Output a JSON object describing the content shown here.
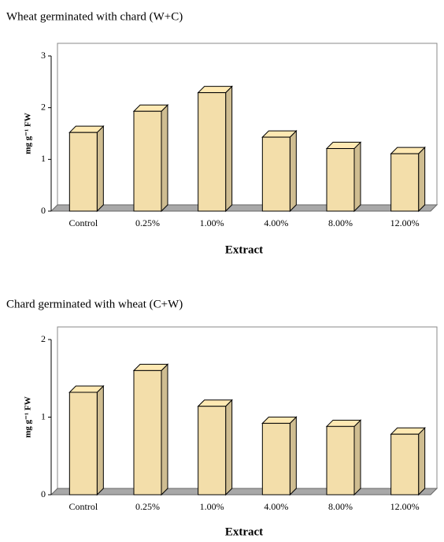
{
  "chart_data": [
    {
      "type": "bar3d",
      "title": "Wheat germinated with chard (W+C)",
      "ylabel": "mg g⁻¹ FW",
      "xlabel": "Extract",
      "categories": [
        "Control",
        "0.25%",
        "1.00%",
        "4.00%",
        "8.00%",
        "12.00%"
      ],
      "values": [
        1.52,
        1.93,
        2.29,
        1.43,
        1.21,
        1.11
      ],
      "color": "#f3deaa",
      "ylim": [
        0,
        3
      ],
      "yticks": [
        0,
        1,
        2,
        3
      ]
    },
    {
      "type": "bar3d",
      "title": "Chard germinated with wheat (C+W)",
      "ylabel": "mg g⁻¹ FW",
      "xlabel": "Extract",
      "categories": [
        "Control",
        "0.25%",
        "1.00%",
        "4.00%",
        "8.00%",
        "12.00%"
      ],
      "values": [
        1.32,
        1.6,
        1.14,
        0.92,
        0.88,
        0.78
      ],
      "color": "#f3deaa",
      "ylim": [
        0,
        2
      ],
      "yticks": [
        0,
        1,
        2
      ]
    }
  ]
}
